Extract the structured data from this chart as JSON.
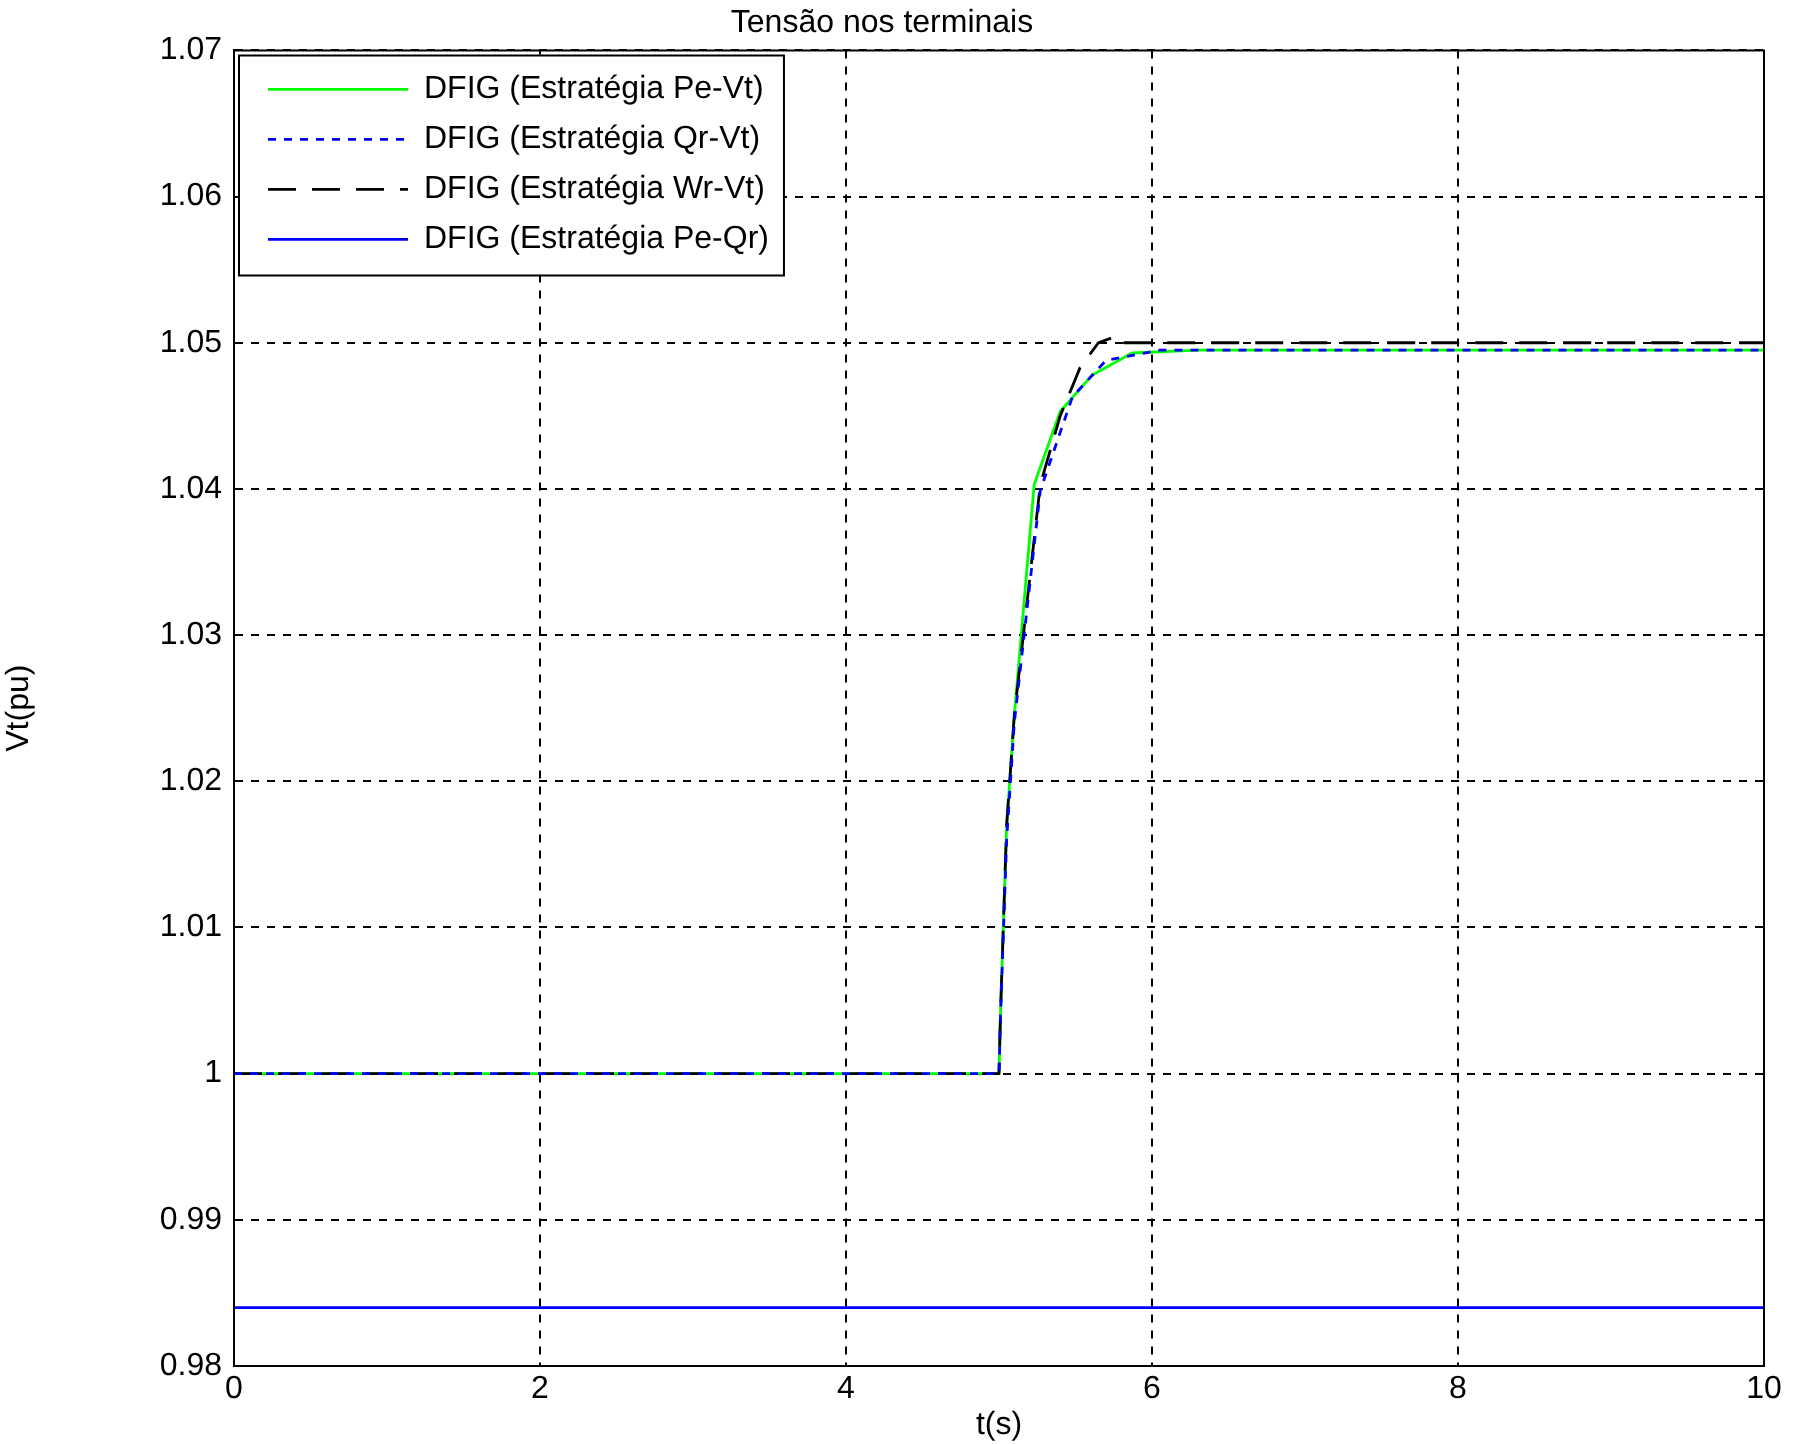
{
  "chart_data": {
    "type": "line",
    "title": "Tensão nos terminais",
    "xlabel": "t(s)",
    "ylabel": "Vt(pu)",
    "xlim": [
      0,
      10
    ],
    "xticks": [
      0,
      2,
      4,
      6,
      8,
      10
    ],
    "ylim": [
      0.98,
      1.07
    ],
    "yticks": [
      0.98,
      0.99,
      1,
      1.01,
      1.02,
      1.03,
      1.04,
      1.05,
      1.06,
      1.07
    ],
    "grid": true,
    "legend": "top left",
    "marker": "none",
    "series": [
      {
        "name": "DFIG (Estratégia Pe-Vt)",
        "color": "#00ff00",
        "line_style": "solid",
        "x": [
          0,
          5,
          5.01,
          5.05,
          5.1,
          5.23,
          5.4,
          5.61,
          5.87,
          6.3,
          10
        ],
        "values": [
          1,
          1,
          1.0042,
          1.017,
          1.0245,
          1.0403,
          1.0453,
          1.0478,
          1.0493,
          1.0495,
          1.0495
        ]
      },
      {
        "name": "DFIG (Estratégia Qr-Vt)",
        "color": "#0000ff",
        "line_style": "dotted",
        "x": [
          0,
          5,
          5.01,
          5.05,
          5.1,
          5.27,
          5.48,
          5.7,
          6.05,
          6.5,
          10
        ],
        "values": [
          1,
          1,
          1.004,
          1.016,
          1.024,
          1.0399,
          1.0463,
          1.0488,
          1.0495,
          1.0495,
          1.0495
        ]
      },
      {
        "name": "DFIG (Estratégia Wr-Vt)",
        "color": "#000000",
        "line_style": "dashed",
        "x": [
          0,
          5,
          5.01,
          5.05,
          5.1,
          5.27,
          5.4,
          5.53,
          5.65,
          5.78,
          5.82,
          6,
          10
        ],
        "values": [
          1,
          1,
          1.0042,
          1.017,
          1.0245,
          1.0403,
          1.045,
          1.0483,
          1.05,
          1.0505,
          1.05,
          1.05,
          1.05
        ]
      },
      {
        "name": "DFIG (Estratégia Pe-Qr)",
        "color": "#0000ff",
        "line_style": "solid",
        "x": [
          0,
          10
        ],
        "values": [
          0.984,
          0.984
        ]
      }
    ]
  }
}
